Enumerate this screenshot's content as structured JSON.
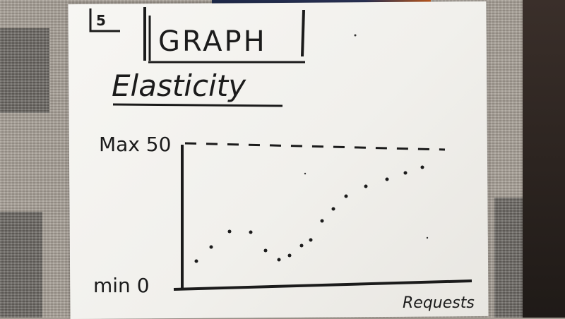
{
  "page_marker": "5",
  "title": "GRAPH",
  "subtitle": "Elasticity",
  "axis": {
    "y_max_label": "Max 50",
    "y_min_label": "min 0",
    "x_label": "Requests"
  }
}
